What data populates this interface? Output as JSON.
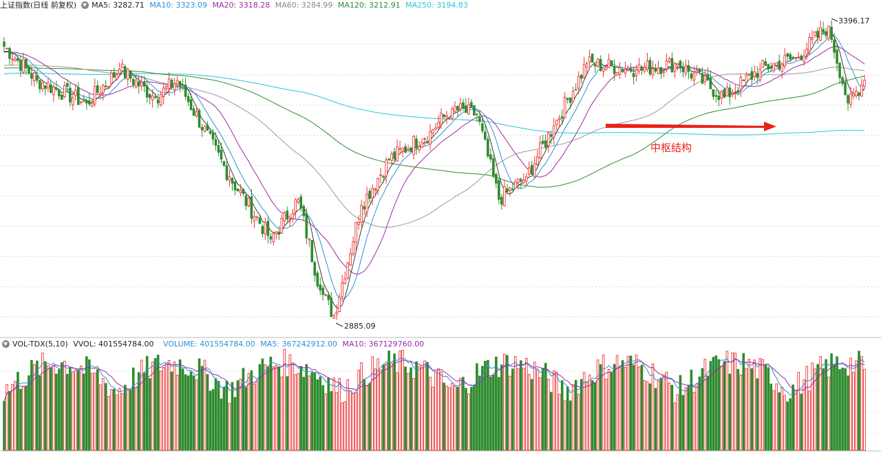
{
  "top_header": {
    "title": "上证指数(日线 前复权)",
    "ma5": "MA5: 3282.71",
    "ma10": "MA10: 3323.09",
    "ma20": "MA20: 3318.28",
    "ma60": "MA60: 3284.99",
    "ma120": "MA120: 3212.91",
    "ma250": "MA250: 3194.83"
  },
  "vol_header": {
    "title": "VOL-TDX(5,10)",
    "vvol": "VVOL: 401554784.00",
    "volume": "VOLUME: 401554784.00",
    "ma5": "MA5: 367242912.00",
    "ma10": "MA10: 367129760.00"
  },
  "annotations": {
    "high_label": "3396.17",
    "low_label": "2885.09",
    "zone_label": "中枢结构"
  },
  "colors": {
    "up": "#ee3333",
    "down": "#2e8b2e",
    "ma5": "#222222",
    "ma10": "#2a8fd6",
    "ma20": "#9a2aa0",
    "ma60": "#999999",
    "ma120": "#2e8b2e",
    "ma250": "#29c4d8",
    "arrow": "#e8231a"
  },
  "chart_data": {
    "type": "candlestick",
    "symbol": "上证指数",
    "period": "日线 前复权",
    "price_axis_range": [
      2850,
      3420
    ],
    "labeled_points": {
      "high": 3396.17,
      "low": 2885.09
    },
    "price_trend_key_points": [
      {
        "bar": 0,
        "close": 3360
      },
      {
        "bar": 12,
        "close": 3300
      },
      {
        "bar": 30,
        "close": 3260
      },
      {
        "bar": 42,
        "close": 3320
      },
      {
        "bar": 55,
        "close": 3270
      },
      {
        "bar": 63,
        "close": 3300
      },
      {
        "bar": 82,
        "close": 3130
      },
      {
        "bar": 97,
        "close": 3020
      },
      {
        "bar": 107,
        "close": 3090
      },
      {
        "bar": 115,
        "close": 2930
      },
      {
        "bar": 120,
        "close": 2885
      },
      {
        "bar": 130,
        "close": 3080
      },
      {
        "bar": 140,
        "close": 3160
      },
      {
        "bar": 155,
        "close": 3210
      },
      {
        "bar": 163,
        "close": 3250
      },
      {
        "bar": 172,
        "close": 3240
      },
      {
        "bar": 180,
        "close": 3090
      },
      {
        "bar": 190,
        "close": 3130
      },
      {
        "bar": 200,
        "close": 3220
      },
      {
        "bar": 212,
        "close": 3330
      },
      {
        "bar": 230,
        "close": 3320
      },
      {
        "bar": 245,
        "close": 3330
      },
      {
        "bar": 262,
        "close": 3270
      },
      {
        "bar": 275,
        "close": 3320
      },
      {
        "bar": 288,
        "close": 3340
      },
      {
        "bar": 300,
        "close": 3396
      },
      {
        "bar": 307,
        "close": 3260
      },
      {
        "bar": 313,
        "close": 3300
      }
    ],
    "moving_averages": {
      "MA5": 3282.71,
      "MA10": 3323.09,
      "MA20": 3318.28,
      "MA60": 3284.99,
      "MA120": 3212.91,
      "MA250": 3194.83
    },
    "volume": {
      "indicator": "VOL-TDX(5,10)",
      "VVOL": 401554784.0,
      "VOLUME": 401554784.0,
      "MA5": 367242912.0,
      "MA10": 367129760.0
    }
  }
}
